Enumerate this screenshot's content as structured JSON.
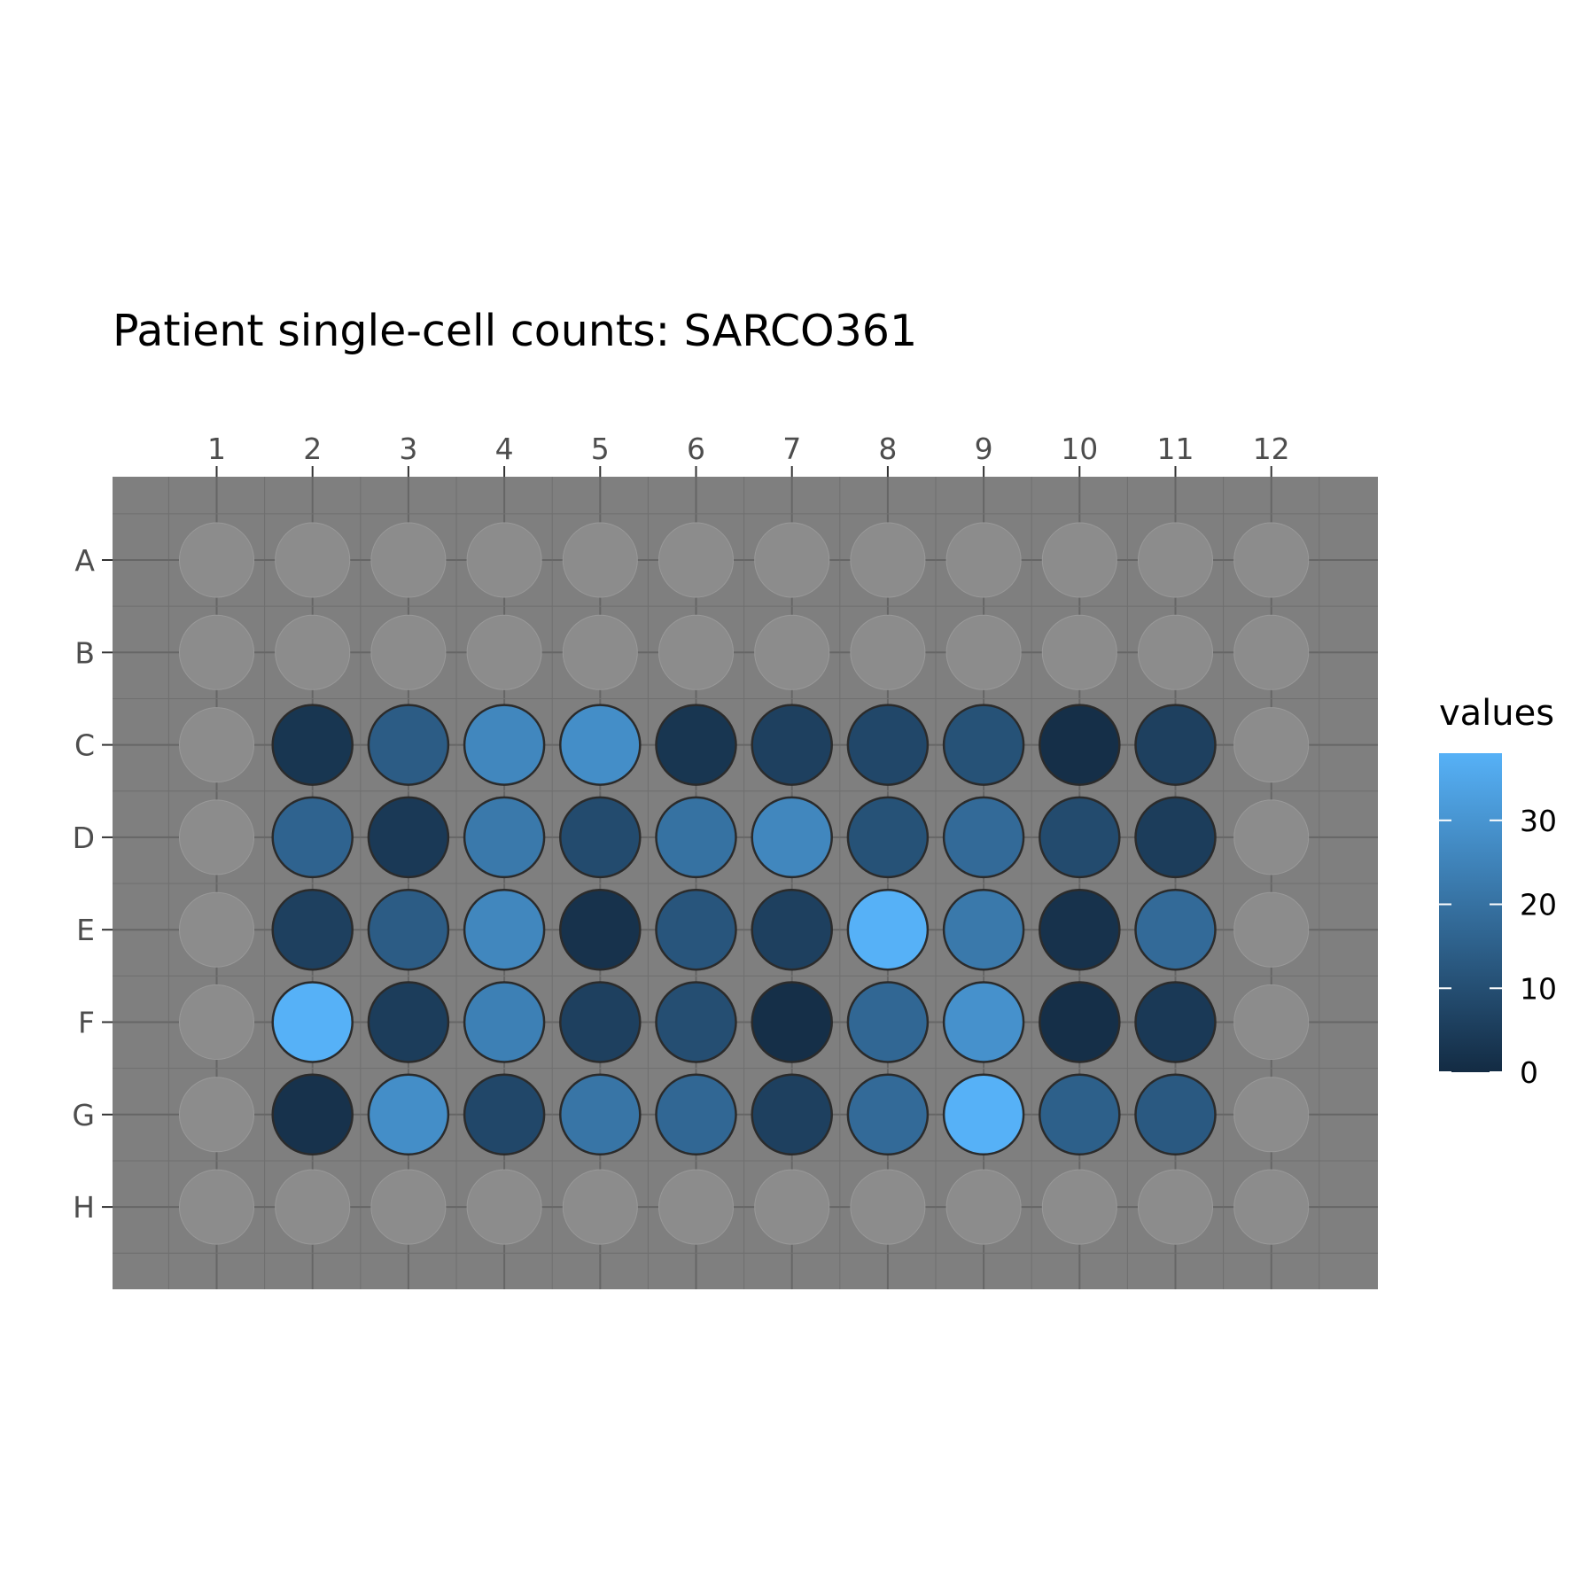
{
  "chart_data": {
    "type": "heatmap",
    "title": "Patient single-cell counts: SARCO361",
    "columns": [
      "1",
      "2",
      "3",
      "4",
      "5",
      "6",
      "7",
      "8",
      "9",
      "10",
      "11",
      "12"
    ],
    "rows": [
      "A",
      "B",
      "C",
      "D",
      "E",
      "F",
      "G",
      "H"
    ],
    "values": [
      [
        null,
        null,
        null,
        null,
        null,
        null,
        null,
        null,
        null,
        null,
        null,
        null
      ],
      [
        null,
        null,
        null,
        null,
        null,
        null,
        null,
        null,
        null,
        null,
        null,
        null
      ],
      [
        null,
        3,
        14,
        26,
        28,
        3,
        6,
        8,
        11,
        1,
        6,
        null
      ],
      [
        null,
        16,
        4,
        22,
        9,
        20,
        26,
        11,
        18,
        9,
        5,
        null
      ],
      [
        null,
        6,
        14,
        26,
        2,
        12,
        6,
        38,
        22,
        2,
        18,
        null
      ],
      [
        null,
        38,
        5,
        24,
        6,
        10,
        1,
        17,
        29,
        1,
        4,
        null
      ],
      [
        null,
        2,
        28,
        8,
        21,
        17,
        6,
        18,
        38,
        15,
        13,
        null
      ],
      [
        null,
        null,
        null,
        null,
        null,
        null,
        null,
        null,
        null,
        null,
        null,
        null
      ]
    ],
    "colorscale": {
      "title": "values",
      "min": 0,
      "max": 38,
      "low_color": "#132B43",
      "high_color": "#56B1F7",
      "ticks": [
        "0",
        "10",
        "20",
        "30"
      ]
    },
    "panel_color": "#7f7f7f",
    "empty_well_color": "#8c8c8c",
    "grid": true,
    "legend_position": "right"
  }
}
